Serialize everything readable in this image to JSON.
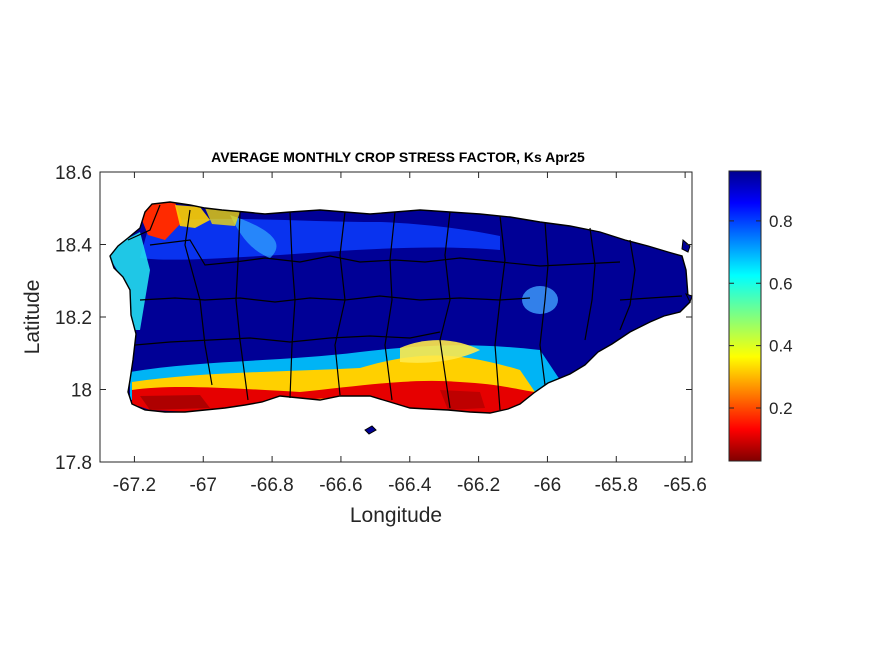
{
  "map": {
    "title": "AVERAGE MONTHLY CROP STRESS FACTOR, Ks Apr25",
    "xlabel": "Longitude",
    "ylabel": "Latitude",
    "x_ticks": [
      "-67.2",
      "-67",
      "-66.8",
      "-66.6",
      "-66.4",
      "-66.2",
      "-66",
      "-65.8",
      "-65.6"
    ],
    "y_ticks": [
      "18.6",
      "18.4",
      "18.2",
      "18",
      "17.8"
    ],
    "x_range": [
      -67.3,
      -65.58
    ],
    "y_range": [
      17.8,
      18.6
    ],
    "region": "Puerto Rico",
    "colormap": "jet",
    "colors": {
      "high": "#00008f",
      "mid": "#00ffff",
      "low": "#800000",
      "boundaries": "#000000"
    }
  },
  "colorbar": {
    "ticks": [
      "0.8",
      "0.6",
      "0.4",
      "0.2"
    ],
    "range": [
      0.03,
      0.96
    ]
  }
}
